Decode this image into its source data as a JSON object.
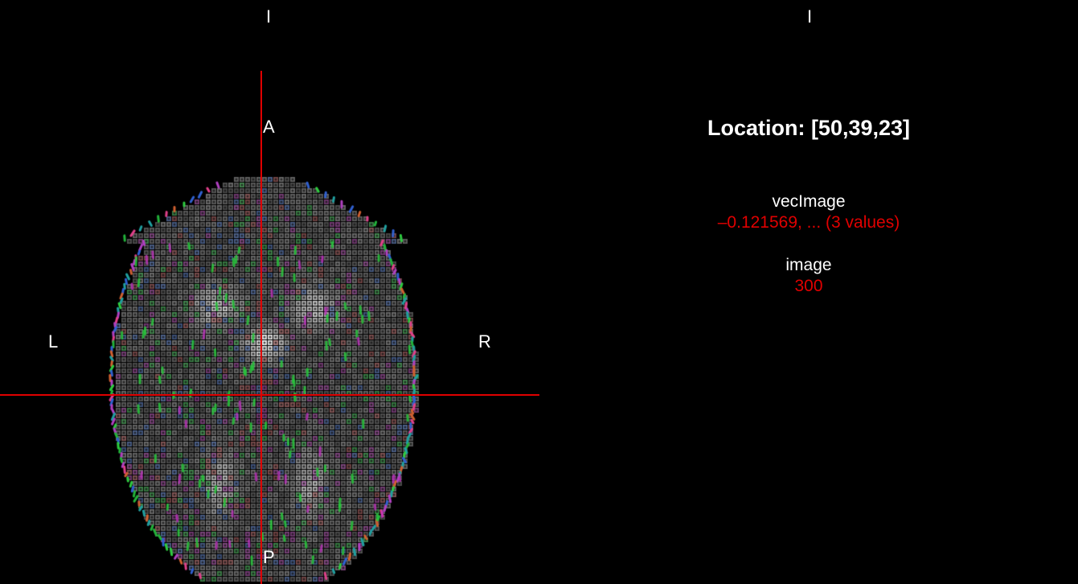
{
  "left_panel": {
    "orientation": {
      "top": "I",
      "anterior": "A",
      "posterior": "P",
      "left": "L",
      "right": "R"
    },
    "crosshair_color": "#e00000",
    "image": "axial brain slice with color-coded direction vector glyphs"
  },
  "right_panel": {
    "orientation_top": "I",
    "location_label": "Location: [50,39,23]",
    "layers": [
      {
        "name": "vecImage",
        "value": "–0.121569, ... (3 values)"
      },
      {
        "name": "image",
        "value": "300"
      }
    ]
  }
}
